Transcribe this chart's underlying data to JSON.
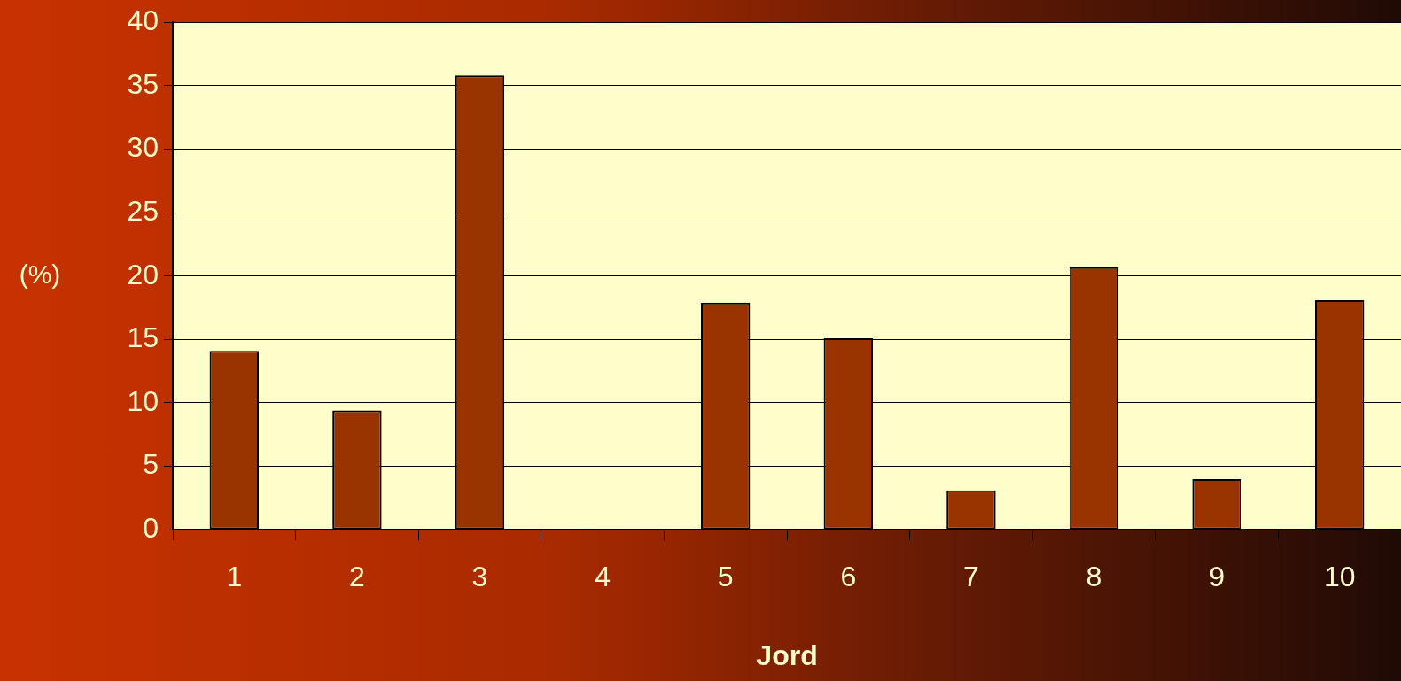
{
  "chart_data": {
    "type": "bar",
    "xlabel": "Jord",
    "ylabel": "(%)",
    "categories": [
      "1",
      "2",
      "3",
      "4",
      "5",
      "6",
      "7",
      "8",
      "9",
      "10"
    ],
    "values": [
      14.1,
      9.4,
      35.8,
      0,
      17.9,
      15.1,
      3.1,
      20.7,
      4.0,
      18.1
    ],
    "color": "#993300",
    "ylim": [
      0,
      40
    ],
    "yticks": [
      0,
      5,
      10,
      15,
      20,
      25,
      30,
      35,
      40
    ],
    "grid": "y",
    "legend": false
  }
}
